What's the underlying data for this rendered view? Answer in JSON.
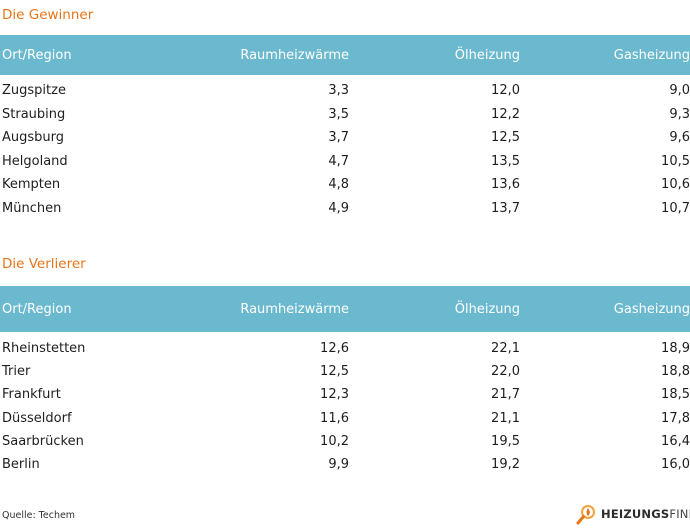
{
  "winners": {
    "title": "Die Gewinner",
    "headers": [
      "Ort/Region",
      "Raumheizwärme",
      "Ölheizung",
      "Gasheizung"
    ],
    "rows": [
      [
        "Zugspitze",
        "3,3",
        "12,0",
        "9,0"
      ],
      [
        "Straubing",
        "3,5",
        "12,2",
        "9,3"
      ],
      [
        "Augsburg",
        "3,7",
        "12,5",
        "9,6"
      ],
      [
        "Helgoland",
        "4,7",
        "13,5",
        "10,5"
      ],
      [
        "Kempten",
        "4,8",
        "13,6",
        "10,6"
      ],
      [
        "München",
        "4,9",
        "13,7",
        "10,7"
      ]
    ]
  },
  "losers": {
    "title": "Die Verlierer",
    "headers": [
      "Ort/Region",
      "Raumheizwärme",
      "Ölheizung",
      "Gasheizung"
    ],
    "rows": [
      [
        "Rheinstetten",
        "12,6",
        "22,1",
        "18,9"
      ],
      [
        "Trier",
        "12,5",
        "22,0",
        "18,8"
      ],
      [
        "Frankfurt",
        "12,3",
        "21,7",
        "18,5"
      ],
      [
        "Düsseldorf",
        "11,6",
        "21,1",
        "17,8"
      ],
      [
        "Saarbrücken",
        "10,2",
        "19,5",
        "16,4"
      ],
      [
        "Berlin",
        "9,9",
        "19,2",
        "16,0"
      ]
    ]
  },
  "footer": {
    "source": "Quelle: Techem",
    "logo_bold": "HEIZUNGS",
    "logo_light": "FINDER",
    "logo_icon": "magnifier-flame-icon"
  },
  "colors": {
    "accent": "#e8741a",
    "header_bg": "#6bb9cf"
  }
}
